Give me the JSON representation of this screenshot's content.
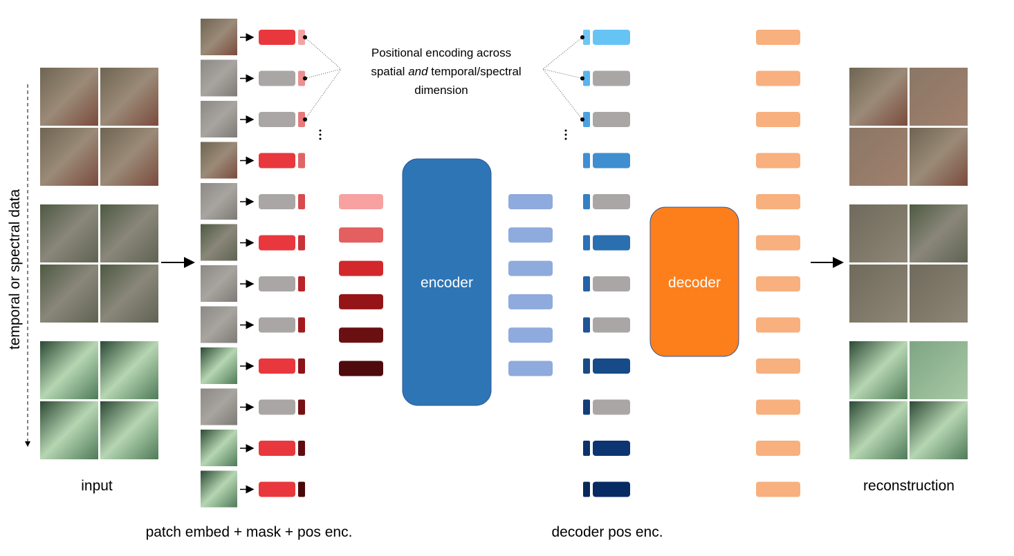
{
  "left_axis_label": "temporal or spectral data",
  "annotation": {
    "line1": "Positional encoding across",
    "line2_start": "spatial",
    "line2_emphasis": "and",
    "line2_end": "temporal/spectral",
    "line3": "dimension"
  },
  "encoder": "encoder",
  "decoder": "decoder",
  "labels": {
    "input": "input",
    "patch": "patch embed + mask + pos enc.",
    "decoder_pos": "decoder pos enc.",
    "reconstruction": "reconstruction"
  }
}
